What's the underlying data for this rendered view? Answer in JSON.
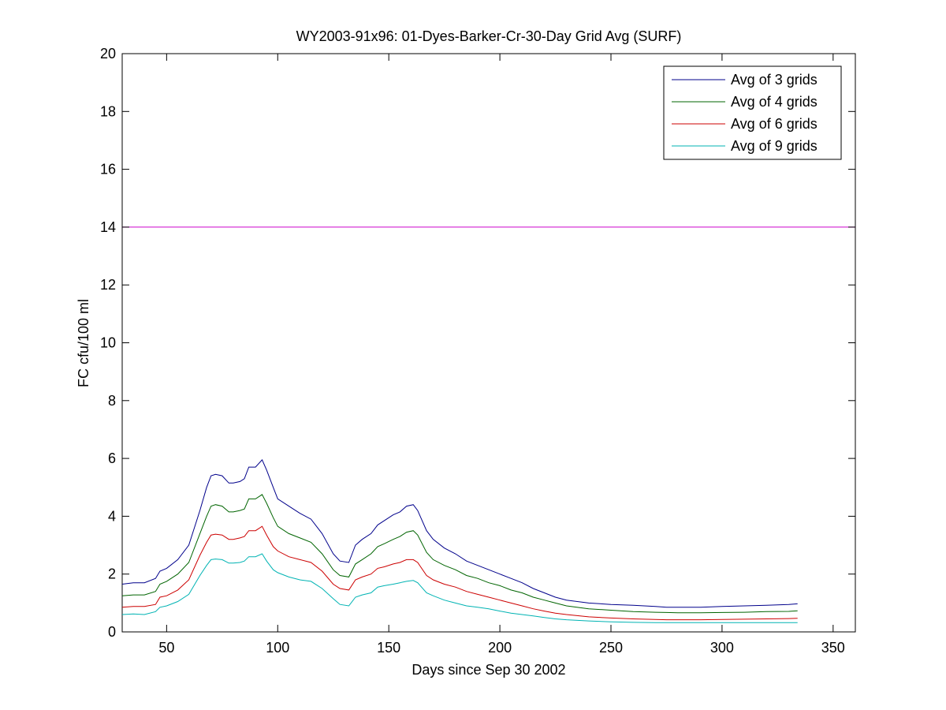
{
  "chart_data": {
    "type": "line",
    "title": "WY2003-91x96: 01-Dyes-Barker-Cr-30-Day Grid Avg (SURF)",
    "xlabel": "Days since Sep 30 2002",
    "ylabel": "FC cfu/100 ml",
    "xlim": [
      30,
      360
    ],
    "ylim": [
      0,
      20
    ],
    "xticks": [
      50,
      100,
      150,
      200,
      250,
      300,
      350
    ],
    "yticks": [
      0,
      2,
      4,
      6,
      8,
      10,
      12,
      14,
      16,
      18,
      20
    ],
    "grid": false,
    "legend_position": "top-right",
    "reference_line": {
      "y": 14,
      "color": "#cc00cc"
    },
    "series": [
      {
        "name": "Avg of 3 grids",
        "color": "#00008b",
        "x": [
          30,
          35,
          40,
          45,
          47,
          50,
          55,
          60,
          65,
          68,
          70,
          72,
          75,
          78,
          80,
          83,
          85,
          87,
          90,
          93,
          95,
          98,
          100,
          105,
          110,
          115,
          120,
          125,
          128,
          132,
          135,
          138,
          142,
          145,
          148,
          152,
          155,
          158,
          161,
          163,
          167,
          170,
          175,
          180,
          185,
          190,
          195,
          200,
          205,
          210,
          215,
          220,
          225,
          230,
          240,
          250,
          260,
          270,
          275,
          280,
          290,
          300,
          310,
          320,
          330,
          334
        ],
        "values": [
          1.65,
          1.7,
          1.7,
          1.85,
          2.1,
          2.2,
          2.5,
          3.0,
          4.2,
          5.0,
          5.4,
          5.45,
          5.4,
          5.15,
          5.15,
          5.2,
          5.3,
          5.7,
          5.7,
          5.95,
          5.6,
          5.0,
          4.6,
          4.35,
          4.1,
          3.9,
          3.4,
          2.7,
          2.45,
          2.4,
          3.0,
          3.2,
          3.4,
          3.7,
          3.85,
          4.05,
          4.15,
          4.35,
          4.4,
          4.2,
          3.5,
          3.2,
          2.9,
          2.7,
          2.45,
          2.3,
          2.15,
          2.0,
          1.85,
          1.7,
          1.5,
          1.35,
          1.2,
          1.1,
          1.0,
          0.95,
          0.92,
          0.88,
          0.85,
          0.85,
          0.85,
          0.88,
          0.9,
          0.92,
          0.95,
          0.97
        ]
      },
      {
        "name": "Avg of 4 grids",
        "color": "#006400",
        "x": [
          30,
          35,
          40,
          45,
          47,
          50,
          55,
          60,
          65,
          68,
          70,
          72,
          75,
          78,
          80,
          83,
          85,
          87,
          90,
          93,
          95,
          98,
          100,
          105,
          110,
          115,
          120,
          125,
          128,
          132,
          135,
          138,
          142,
          145,
          148,
          152,
          155,
          158,
          161,
          163,
          167,
          170,
          175,
          180,
          185,
          190,
          195,
          200,
          205,
          210,
          215,
          220,
          225,
          230,
          240,
          250,
          260,
          270,
          275,
          280,
          290,
          300,
          310,
          320,
          330,
          334
        ],
        "values": [
          1.25,
          1.28,
          1.28,
          1.4,
          1.65,
          1.75,
          2.0,
          2.4,
          3.4,
          4.0,
          4.35,
          4.4,
          4.35,
          4.15,
          4.15,
          4.2,
          4.25,
          4.6,
          4.6,
          4.75,
          4.45,
          3.95,
          3.65,
          3.4,
          3.25,
          3.1,
          2.7,
          2.15,
          1.95,
          1.9,
          2.35,
          2.5,
          2.7,
          2.95,
          3.05,
          3.2,
          3.3,
          3.45,
          3.5,
          3.35,
          2.75,
          2.5,
          2.3,
          2.15,
          1.95,
          1.85,
          1.7,
          1.6,
          1.45,
          1.35,
          1.2,
          1.1,
          1.0,
          0.9,
          0.8,
          0.75,
          0.7,
          0.68,
          0.67,
          0.66,
          0.66,
          0.67,
          0.68,
          0.7,
          0.71,
          0.73
        ]
      },
      {
        "name": "Avg of 6 grids",
        "color": "#cc0000",
        "x": [
          30,
          35,
          40,
          45,
          47,
          50,
          55,
          60,
          65,
          68,
          70,
          72,
          75,
          78,
          80,
          83,
          85,
          87,
          90,
          93,
          95,
          98,
          100,
          105,
          110,
          115,
          120,
          125,
          128,
          132,
          135,
          138,
          142,
          145,
          148,
          152,
          155,
          158,
          161,
          163,
          167,
          170,
          175,
          180,
          185,
          190,
          195,
          200,
          205,
          210,
          215,
          220,
          225,
          230,
          240,
          250,
          260,
          270,
          275,
          280,
          290,
          300,
          310,
          320,
          330,
          334
        ],
        "values": [
          0.85,
          0.88,
          0.88,
          0.95,
          1.2,
          1.25,
          1.45,
          1.8,
          2.65,
          3.1,
          3.35,
          3.38,
          3.35,
          3.2,
          3.2,
          3.25,
          3.3,
          3.5,
          3.5,
          3.65,
          3.35,
          2.95,
          2.8,
          2.6,
          2.5,
          2.4,
          2.1,
          1.65,
          1.5,
          1.45,
          1.8,
          1.9,
          2.0,
          2.2,
          2.25,
          2.35,
          2.4,
          2.5,
          2.5,
          2.4,
          1.95,
          1.8,
          1.65,
          1.55,
          1.4,
          1.3,
          1.2,
          1.1,
          1.0,
          0.9,
          0.8,
          0.72,
          0.65,
          0.6,
          0.52,
          0.48,
          0.45,
          0.43,
          0.42,
          0.42,
          0.42,
          0.43,
          0.44,
          0.45,
          0.46,
          0.47
        ]
      },
      {
        "name": "Avg of 9 grids",
        "color": "#00b3b3",
        "x": [
          30,
          35,
          40,
          45,
          47,
          50,
          55,
          60,
          65,
          68,
          70,
          72,
          75,
          78,
          80,
          83,
          85,
          87,
          90,
          93,
          95,
          98,
          100,
          105,
          110,
          115,
          120,
          125,
          128,
          132,
          135,
          138,
          142,
          145,
          148,
          152,
          155,
          158,
          161,
          163,
          167,
          170,
          175,
          180,
          185,
          190,
          195,
          200,
          205,
          210,
          215,
          220,
          225,
          230,
          240,
          250,
          260,
          270,
          275,
          280,
          290,
          300,
          310,
          320,
          330,
          334
        ],
        "values": [
          0.6,
          0.62,
          0.6,
          0.7,
          0.85,
          0.9,
          1.05,
          1.3,
          1.95,
          2.3,
          2.5,
          2.52,
          2.5,
          2.38,
          2.38,
          2.4,
          2.45,
          2.6,
          2.6,
          2.7,
          2.45,
          2.15,
          2.05,
          1.9,
          1.8,
          1.75,
          1.5,
          1.15,
          0.95,
          0.9,
          1.2,
          1.28,
          1.35,
          1.55,
          1.6,
          1.65,
          1.7,
          1.75,
          1.78,
          1.7,
          1.35,
          1.25,
          1.1,
          1.0,
          0.9,
          0.85,
          0.8,
          0.72,
          0.65,
          0.6,
          0.55,
          0.5,
          0.45,
          0.42,
          0.38,
          0.35,
          0.33,
          0.32,
          0.32,
          0.32,
          0.32,
          0.32,
          0.32,
          0.32,
          0.32,
          0.32
        ]
      }
    ]
  }
}
